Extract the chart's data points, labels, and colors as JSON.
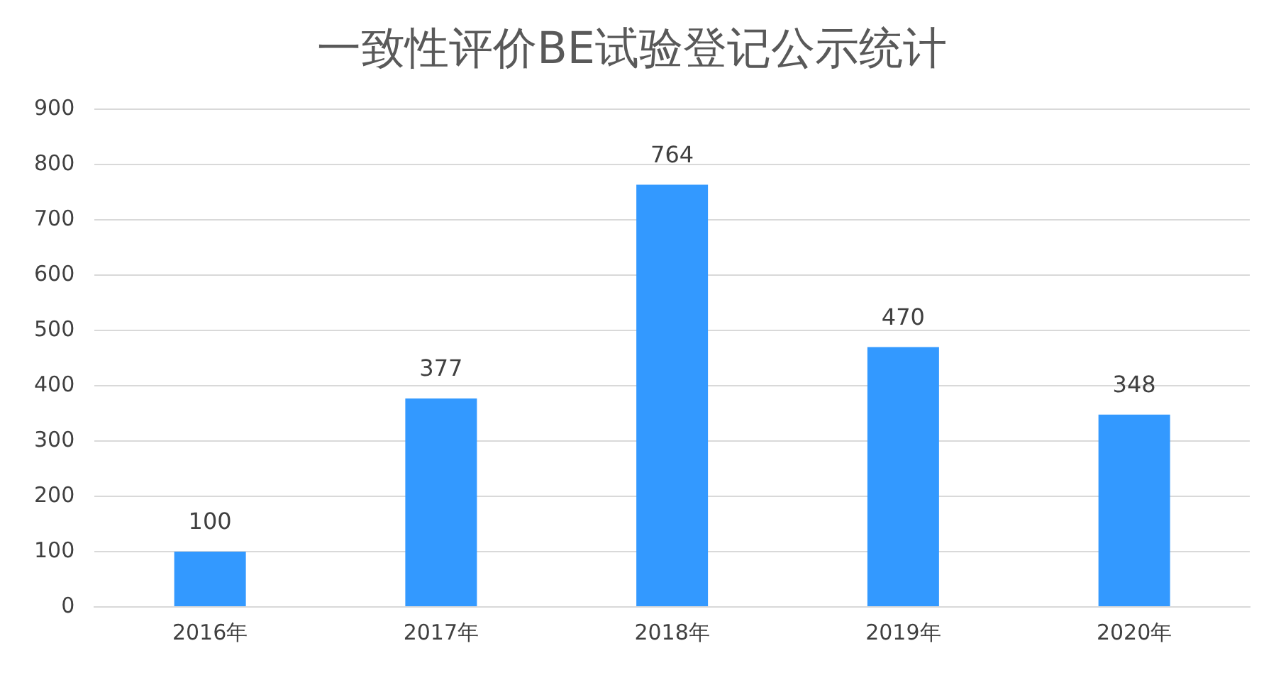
{
  "chart_data": {
    "type": "bar",
    "title": "一致性评价BE试验登记公示统计",
    "categories": [
      "2016年",
      "2017年",
      "2018年",
      "2019年",
      "2020年"
    ],
    "values": [
      100,
      377,
      764,
      470,
      348
    ],
    "color": "#3399ff",
    "ylim": [
      0,
      900
    ],
    "yticks": [
      0,
      100,
      200,
      300,
      400,
      500,
      600,
      700,
      800,
      900
    ],
    "grid": "y",
    "data_labels": true
  }
}
